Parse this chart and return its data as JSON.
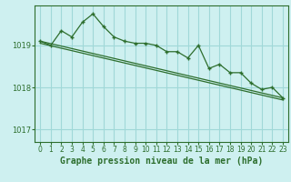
{
  "title": "Graphe pression niveau de la mer (hPa)",
  "background_color": "#cef0f0",
  "plot_bg_color": "#cef0f0",
  "grid_color": "#a0d8d8",
  "line_color": "#2d6e2d",
  "xlim": [
    -0.5,
    23.5
  ],
  "ylim": [
    1016.7,
    1019.95
  ],
  "yticks": [
    1017,
    1018,
    1019
  ],
  "xticks": [
    0,
    1,
    2,
    3,
    4,
    5,
    6,
    7,
    8,
    9,
    10,
    11,
    12,
    13,
    14,
    15,
    16,
    17,
    18,
    19,
    20,
    21,
    22,
    23
  ],
  "series1_x": [
    0,
    1,
    2,
    3,
    4,
    5,
    6,
    7,
    8,
    9,
    10,
    11,
    12,
    13,
    14,
    15,
    16,
    17,
    18,
    19,
    20,
    21,
    22,
    23
  ],
  "series1_y": [
    1019.1,
    1019.0,
    1019.35,
    1019.2,
    1019.55,
    1019.75,
    1019.45,
    1019.2,
    1019.1,
    1019.05,
    1019.05,
    1019.0,
    1018.85,
    1018.85,
    1018.7,
    1019.0,
    1018.45,
    1018.55,
    1018.35,
    1018.35,
    1018.1,
    1017.95,
    1018.0,
    1017.75
  ],
  "series2_x": [
    0,
    23
  ],
  "series2_y": [
    1019.1,
    1017.75
  ],
  "series3_x": [
    0,
    23
  ],
  "series3_y": [
    1019.05,
    1017.7
  ],
  "xlabel_fontsize": 7,
  "tick_fontsize": 6
}
